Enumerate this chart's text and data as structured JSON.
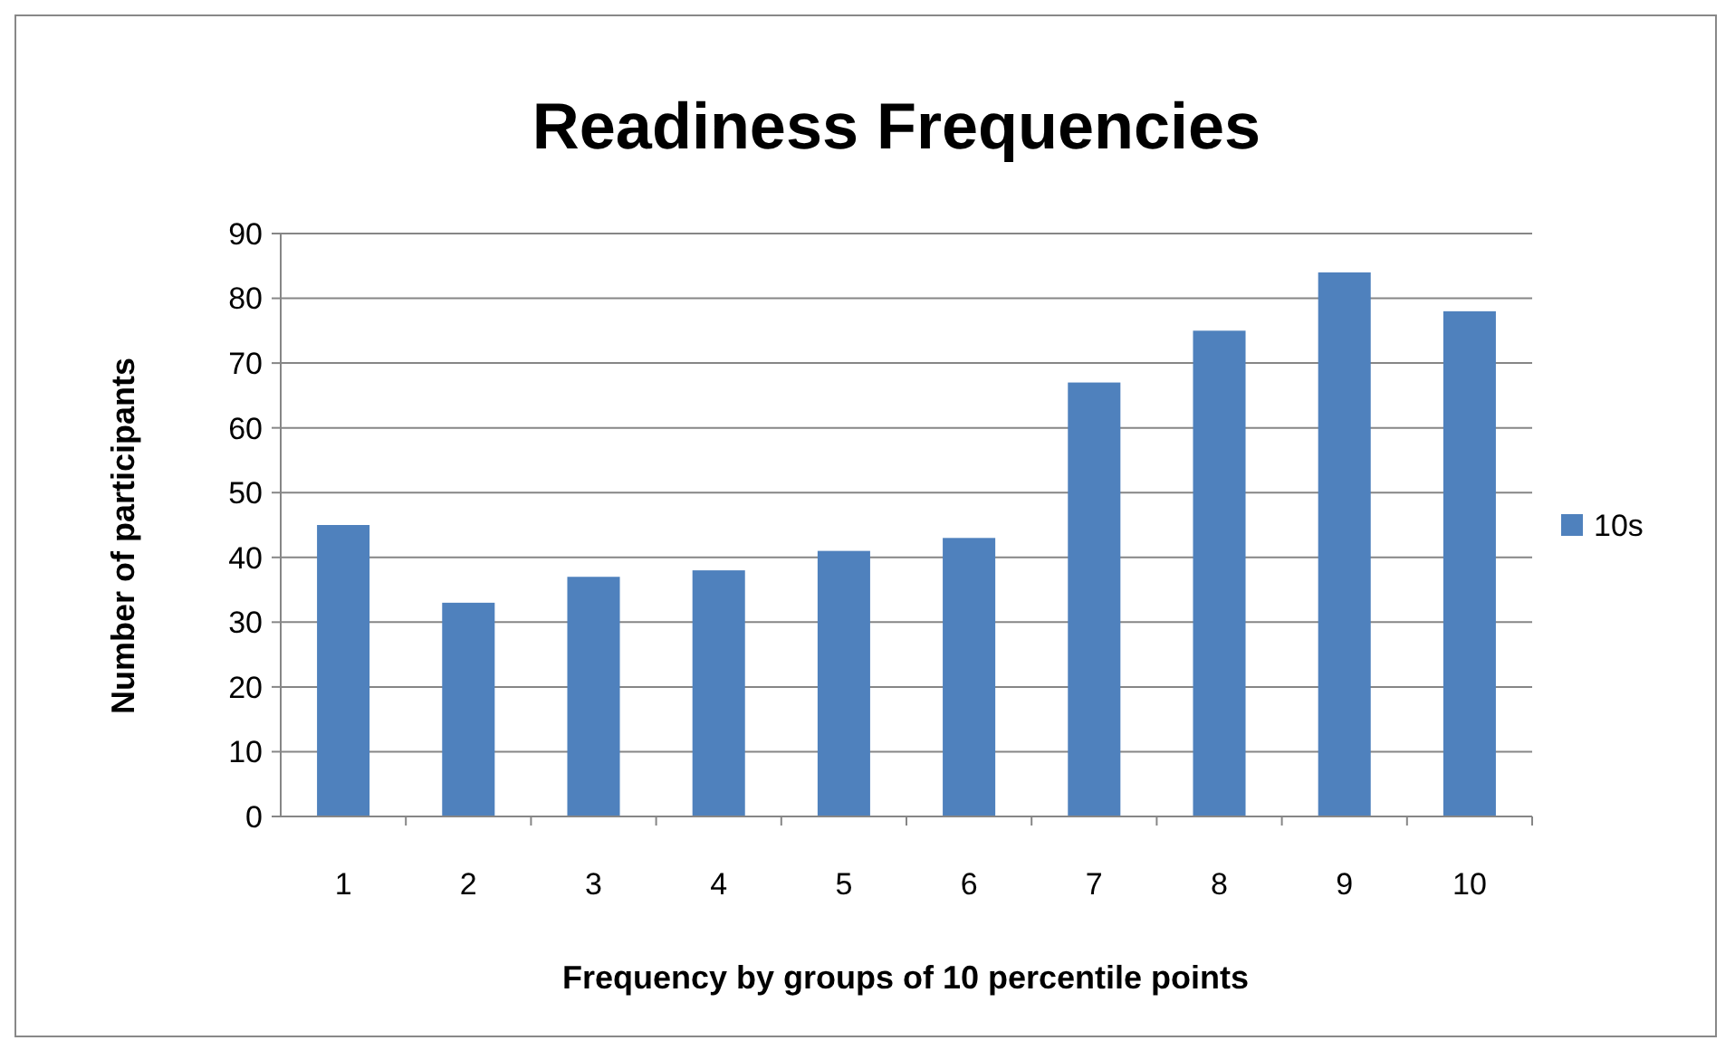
{
  "chart_data": {
    "type": "bar",
    "title": "Readiness Frequencies",
    "xlabel": "Frequency by groups of 10 percentile points",
    "ylabel": "Number of participants",
    "categories": [
      "1",
      "2",
      "3",
      "4",
      "5",
      "6",
      "7",
      "8",
      "9",
      "10"
    ],
    "series": [
      {
        "name": "10s",
        "color": "#4f81bd",
        "values": [
          45,
          33,
          37,
          38,
          41,
          43,
          67,
          75,
          84,
          78
        ]
      }
    ],
    "ylim": [
      0,
      90
    ],
    "yticks": [
      0,
      10,
      20,
      30,
      40,
      50,
      60,
      70,
      80,
      90
    ],
    "grid": "y",
    "legend": "right"
  }
}
